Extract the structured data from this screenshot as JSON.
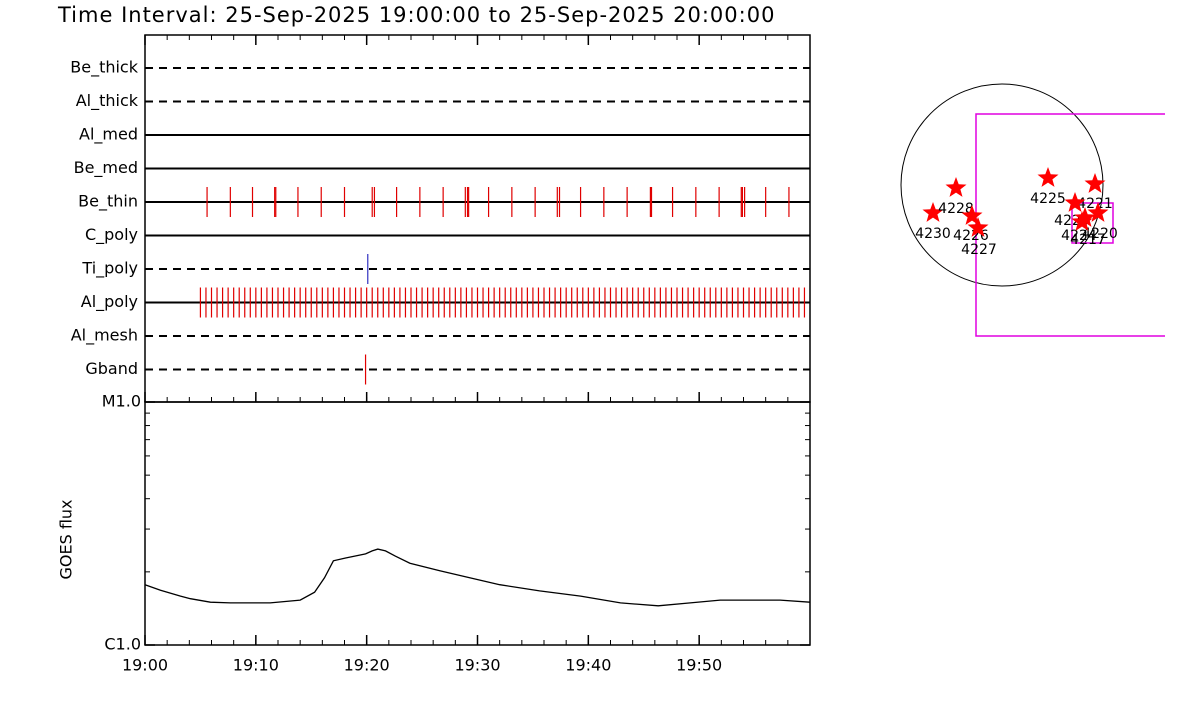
{
  "title": "Time Interval: 25-Sep-2025 19:00:00 to 25-Sep-2025 20:00:00",
  "chart_data": [
    {
      "type": "timeline",
      "xlim": [
        0,
        60
      ],
      "xticks": [
        0,
        10,
        20,
        30,
        40,
        50
      ],
      "x_minor_step": 2,
      "rows": [
        {
          "name": "Be_thick",
          "style": "dashed",
          "color": "#e00000",
          "events": []
        },
        {
          "name": "Al_thick",
          "style": "dashed",
          "color": "#e00000",
          "events": []
        },
        {
          "name": "Al_med",
          "style": "solid",
          "color": "#e00000",
          "events": []
        },
        {
          "name": "Be_med",
          "style": "solid",
          "color": "#e00000",
          "events": []
        },
        {
          "name": "Be_thin",
          "style": "solid",
          "color": "#e00000",
          "events": [
            5.6,
            7.7,
            9.7,
            11.7,
            11.8,
            13.8,
            15.9,
            18.0,
            20.5,
            20.7,
            22.7,
            24.8,
            26.9,
            28.9,
            29.1,
            29.2,
            31.0,
            33.1,
            35.2,
            37.2,
            37.4,
            39.3,
            41.4,
            43.5,
            45.6,
            45.7,
            47.6,
            49.7,
            51.8,
            53.8,
            53.9,
            54.1,
            56.0,
            58.1
          ]
        },
        {
          "name": "C_poly",
          "style": "solid",
          "color": "#e00000",
          "events": []
        },
        {
          "name": "Ti_poly",
          "style": "dashed",
          "color": "#3030c0",
          "events": [
            20.1
          ]
        },
        {
          "name": "Al_poly",
          "style": "solid",
          "color": "#e00000",
          "events": [
            5,
            5.5,
            6,
            6.5,
            7,
            7.5,
            8,
            8.5,
            9,
            9.5,
            10,
            10.5,
            11,
            11.5,
            12,
            12.5,
            13,
            13.5,
            14,
            14.5,
            15,
            15.5,
            16,
            16.5,
            17,
            17.5,
            18,
            18.5,
            19,
            19.5,
            20,
            20.5,
            21,
            21.5,
            22,
            22.5,
            23,
            23.5,
            24,
            24.5,
            25,
            25.5,
            26,
            26.5,
            27,
            27.5,
            28,
            28.5,
            29,
            29.5,
            30,
            30.5,
            31,
            31.5,
            32,
            32.5,
            33,
            33.5,
            34,
            34.5,
            35,
            35.5,
            36,
            36.5,
            37,
            37.5,
            38,
            38.5,
            39,
            39.5,
            40,
            40.5,
            41,
            41.5,
            42,
            42.5,
            43,
            43.5,
            44,
            44.5,
            45,
            45.5,
            46,
            46.5,
            47,
            47.5,
            48,
            48.5,
            49,
            49.5,
            50,
            50.5,
            51,
            51.5,
            52,
            52.5,
            53,
            53.5,
            54,
            54.5,
            55,
            55.5,
            56,
            56.5,
            57,
            57.5,
            58,
            58.5,
            59,
            59.5
          ]
        },
        {
          "name": "Al_mesh",
          "style": "dashed",
          "color": "#e00000",
          "events": []
        },
        {
          "name": "Gband",
          "style": "dashed",
          "color": "#e00000",
          "events": [
            19.9
          ]
        }
      ]
    },
    {
      "type": "line",
      "ylabel": "GOES flux",
      "log_y": true,
      "color": "#000000",
      "xlim": [
        0,
        60
      ],
      "x_minor_step": 2,
      "xticks": [
        {
          "value": 0,
          "label": "19:00"
        },
        {
          "value": 10,
          "label": "19:10"
        },
        {
          "value": 20,
          "label": "19:20"
        },
        {
          "value": 30,
          "label": "19:30"
        },
        {
          "value": 40,
          "label": "19:40"
        },
        {
          "value": 50,
          "label": "19:50"
        }
      ],
      "ylim": [
        1e-06,
        1e-05
      ],
      "yticks": [
        {
          "value": 1e-06,
          "label": "C1.0"
        },
        {
          "value": 1e-05,
          "label": "M1.0"
        }
      ],
      "x": [
        0,
        1.4,
        3.2,
        4.1,
        5.9,
        7.7,
        11.3,
        14.0,
        15.3,
        16.2,
        17.0,
        18.1,
        19.9,
        20.5,
        21.0,
        21.7,
        22.6,
        23.9,
        26.6,
        29.3,
        32.0,
        35.6,
        39.3,
        42.9,
        46.3,
        49.2,
        51.9,
        57.3,
        60
      ],
      "values": [
        1.77e-06,
        1.68e-06,
        1.59e-06,
        1.55e-06,
        1.5e-06,
        1.49e-06,
        1.49e-06,
        1.53e-06,
        1.65e-06,
        1.89e-06,
        2.22e-06,
        2.28e-06,
        2.37e-06,
        2.44e-06,
        2.48e-06,
        2.44e-06,
        2.32e-06,
        2.17e-06,
        2.02e-06,
        1.89e-06,
        1.77e-06,
        1.67e-06,
        1.59e-06,
        1.49e-06,
        1.45e-06,
        1.49e-06,
        1.53e-06,
        1.53e-06,
        1.5e-06
      ]
    }
  ],
  "map": {
    "star_color": "#ff0000",
    "box_color": "#e000e0",
    "regions": [
      "4230",
      "4228",
      "4226",
      "4227",
      "4225",
      "4221",
      "4229",
      "4224",
      "4220",
      "4217"
    ]
  }
}
